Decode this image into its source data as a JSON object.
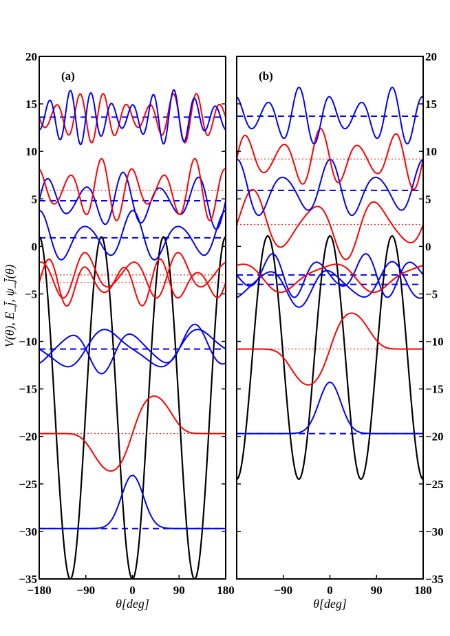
{
  "figure": {
    "ylabel": "V(θ), E_j̄, ψ_j̄(θ)"
  },
  "colors": {
    "potential": "#000000",
    "even_state": "#0000ff",
    "odd_state": "#ff0000",
    "even_level": "#0000ff",
    "odd_level": "#ff3030"
  },
  "chart_data": [
    {
      "type": "line",
      "panel_label": "(a)",
      "xlabel": "θ[deg]",
      "xlim": [
        -180,
        180
      ],
      "ylim": [
        -35,
        20
      ],
      "xticks": [
        -180,
        -90,
        0,
        90,
        180
      ],
      "yticks": [
        20,
        15,
        10,
        5,
        0,
        -5,
        -10,
        -15,
        -20,
        -25,
        -30,
        -35
      ],
      "ytick_side": "left",
      "grid": false,
      "potential": {
        "description_formula": "V(θ) = A - B cos(3θ)",
        "A": -17,
        "B": 18,
        "n": 3,
        "phase_deg": 0,
        "color": "#000000"
      },
      "states": [
        {
          "parity": "even",
          "level": -29.7,
          "amplitude": 5.6,
          "shape": "ground",
          "color": "#0000ff"
        },
        {
          "parity": "odd",
          "level": -19.7,
          "amplitude": 4.7,
          "shape": "first",
          "color": "#ff0000"
        },
        {
          "parity": "even",
          "level": -10.8,
          "amplitude": 2.6,
          "nodes": 3,
          "color": "#0000ff"
        },
        {
          "parity": "even",
          "level": -10.8,
          "amplitude": 2.6,
          "nodes": 2,
          "color": "#0000ff"
        },
        {
          "parity": "odd",
          "level": -3.0,
          "amplitude": 2.6,
          "nodes": 4,
          "color": "#ff0000"
        },
        {
          "parity": "odd",
          "level": -3.8,
          "amplitude": 2.6,
          "nodes": 5,
          "color": "#ff0000"
        },
        {
          "parity": "even",
          "level": 0.9,
          "amplitude": 2.9,
          "nodes": 4,
          "color": "#0000ff"
        },
        {
          "parity": "even",
          "level": 4.8,
          "amplitude": 3.0,
          "nodes": 5,
          "color": "#0000ff"
        },
        {
          "parity": "odd",
          "level": 5.9,
          "amplitude": 3.4,
          "nodes": 6,
          "color": "#ff0000"
        },
        {
          "parity": "odd",
          "level": 13.6,
          "amplitude": 2.7,
          "nodes": 8,
          "color": "#ff0000"
        },
        {
          "parity": "even",
          "level": 13.6,
          "amplitude": 2.9,
          "nodes": 9,
          "color": "#0000ff"
        }
      ],
      "levels": [
        {
          "value": -29.7,
          "style": "dashed",
          "color": "#0000ff"
        },
        {
          "value": -19.7,
          "style": "dotted",
          "color": "#ff3030"
        },
        {
          "value": -10.8,
          "style": "dashed",
          "color": "#0000ff"
        },
        {
          "value": -3.0,
          "style": "dotted",
          "color": "#ff3030"
        },
        {
          "value": -3.8,
          "style": "dotted",
          "color": "#ff3030"
        },
        {
          "value": 0.9,
          "style": "dashed",
          "color": "#0000ff"
        },
        {
          "value": 4.8,
          "style": "dashed",
          "color": "#0000ff"
        },
        {
          "value": 5.9,
          "style": "dotted",
          "color": "#ff3030"
        },
        {
          "value": 13.6,
          "style": "dashed",
          "color": "#0000ff"
        }
      ]
    },
    {
      "type": "line",
      "panel_label": "(b)",
      "xlabel": "θ[deg]",
      "xlim": [
        -180,
        180
      ],
      "ylim": [
        -35,
        20
      ],
      "xticks": [
        -90,
        0,
        90,
        180
      ],
      "yticks": [
        20,
        15,
        10,
        5,
        0,
        -5,
        -10,
        -15,
        -20,
        -25,
        -30,
        -35
      ],
      "ytick_side": "right",
      "grid": false,
      "potential": {
        "description_formula": "V(θ) = A - B cos(3θ + φ) + C cos(θ)",
        "A": -11.7,
        "B": 12.8,
        "n": 3,
        "phase_deg": 180,
        "color": "#000000"
      },
      "states": [
        {
          "parity": "even",
          "level": -19.7,
          "amplitude": 5.4,
          "shape": "ground",
          "color": "#0000ff"
        },
        {
          "parity": "odd",
          "level": -10.8,
          "amplitude": 4.5,
          "shape": "first",
          "color": "#ff0000"
        },
        {
          "parity": "even",
          "level": -4.0,
          "amplitude": 2.4,
          "nodes": 3,
          "color": "#0000ff"
        },
        {
          "parity": "even",
          "level": -3.0,
          "amplitude": 2.5,
          "nodes": 4,
          "color": "#0000ff"
        },
        {
          "parity": "odd",
          "level": -3.0,
          "amplitude": 2.0,
          "nodes": 2,
          "color": "#ff0000"
        },
        {
          "parity": "odd",
          "level": 2.3,
          "amplitude": 3.7,
          "nodes": 3,
          "color": "#ff0000"
        },
        {
          "parity": "even",
          "level": 5.9,
          "amplitude": 3.3,
          "nodes": 4,
          "color": "#0000ff"
        },
        {
          "parity": "odd",
          "level": 9.2,
          "amplitude": 3.2,
          "nodes": 5,
          "color": "#ff0000"
        },
        {
          "parity": "even",
          "level": 13.7,
          "amplitude": 3.1,
          "nodes": 6,
          "color": "#0000ff"
        }
      ],
      "levels": [
        {
          "value": -19.7,
          "style": "dashed",
          "color": "#0000ff"
        },
        {
          "value": -10.8,
          "style": "dotted",
          "color": "#ff3030"
        },
        {
          "value": -4.0,
          "style": "dashed",
          "color": "#0000ff"
        },
        {
          "value": -3.0,
          "style": "dashed",
          "color": "#0000ff"
        },
        {
          "value": 2.3,
          "style": "dotted",
          "color": "#ff3030"
        },
        {
          "value": 5.9,
          "style": "dashed",
          "color": "#0000ff"
        },
        {
          "value": 9.2,
          "style": "dotted",
          "color": "#ff3030"
        },
        {
          "value": 13.7,
          "style": "dashed",
          "color": "#0000ff"
        }
      ]
    }
  ]
}
